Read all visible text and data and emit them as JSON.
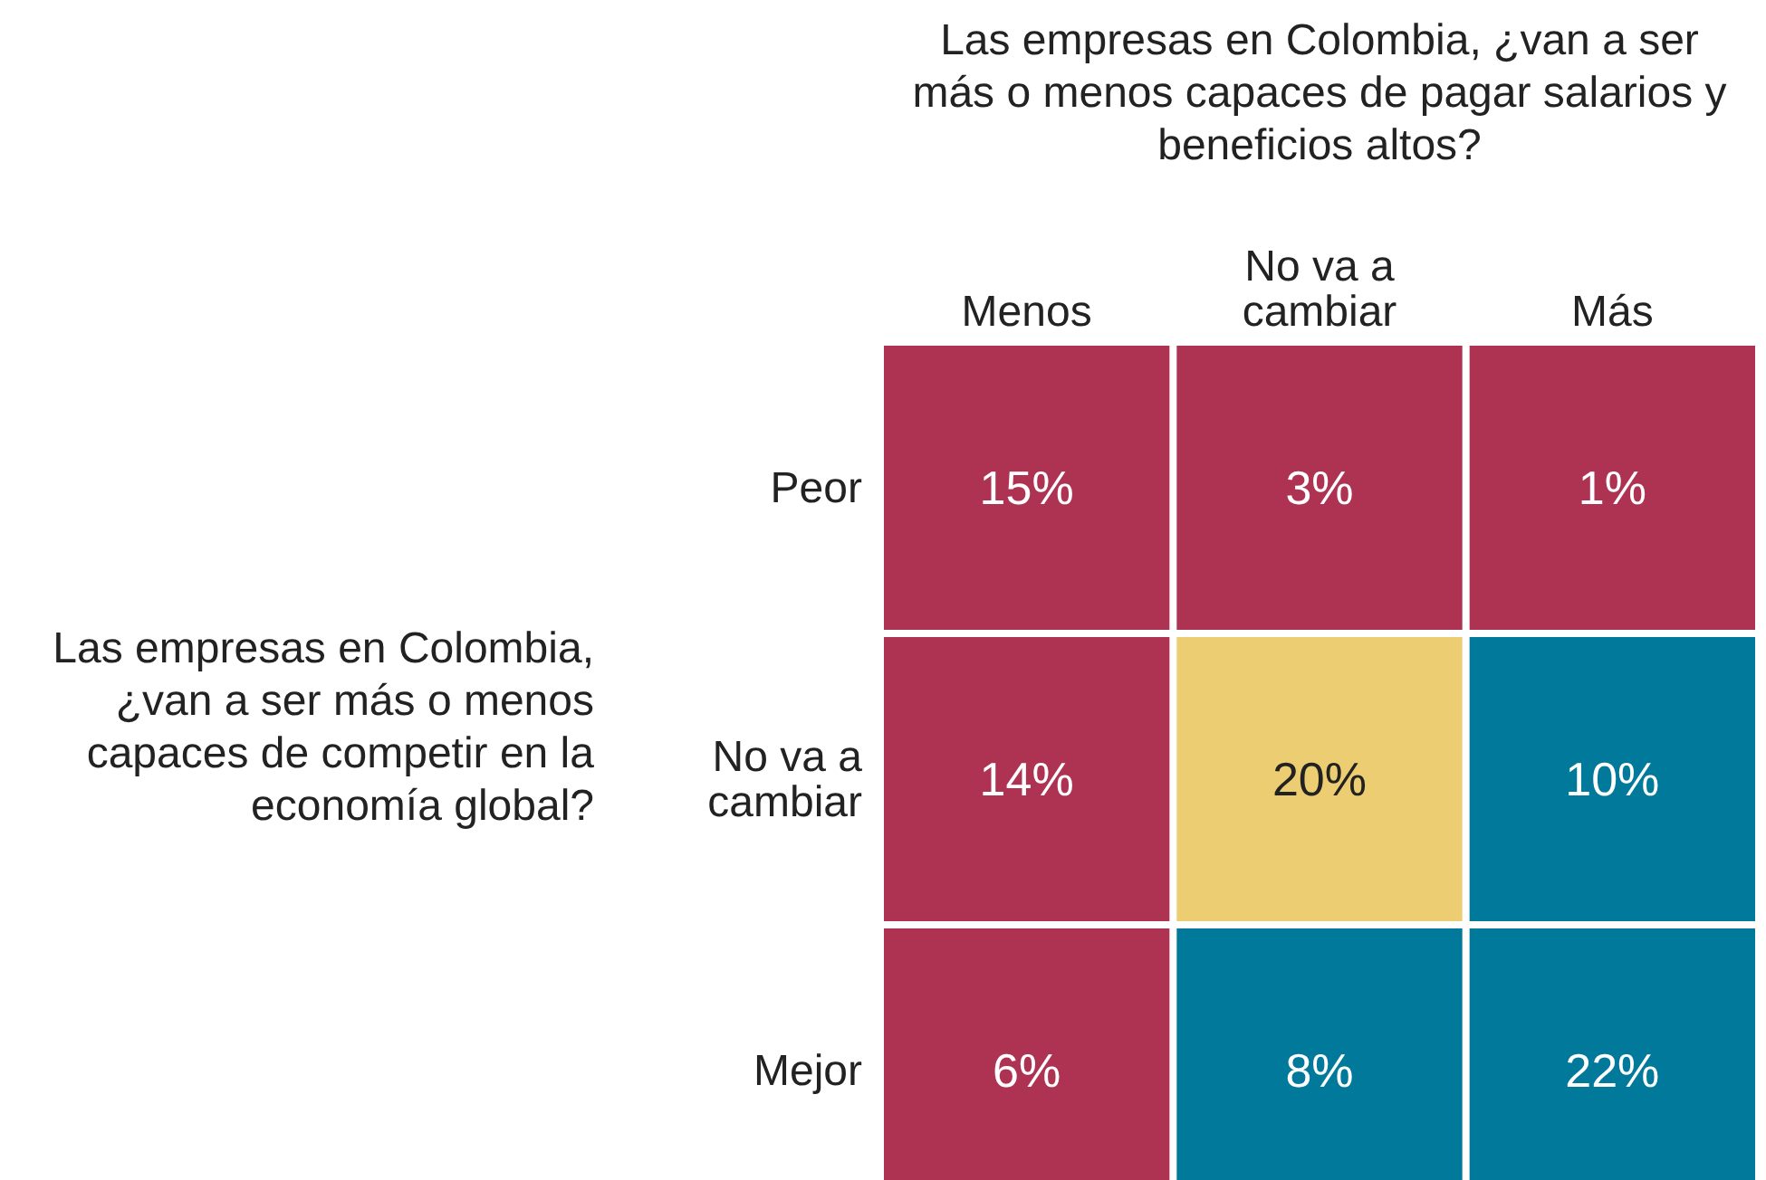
{
  "chart_data": {
    "type": "heatmap",
    "xlabel": "Las empresas en Colombia, ¿van a ser más o menos capaces de pagar salarios y beneficios altos?",
    "ylabel": "Las empresas en Colombia, ¿van a ser más o menos capaces de competir en la economía global?",
    "categories": [
      "Menos",
      "No va a cambiar",
      "Más"
    ],
    "y_categories": [
      "Peor",
      "No va a cambiar",
      "Mejor"
    ],
    "cells": [
      [
        15,
        3,
        1
      ],
      [
        14,
        20,
        10
      ],
      [
        6,
        8,
        22
      ]
    ],
    "cell_labels": [
      [
        "15%",
        "3%",
        "1%"
      ],
      [
        "14%",
        "20%",
        "10%"
      ],
      [
        "6%",
        "8%",
        "22%"
      ]
    ],
    "colors": [
      [
        "#ae3353",
        "#ae3353",
        "#ae3353"
      ],
      [
        "#ae3353",
        "#eccd72",
        "#00799a"
      ],
      [
        "#ae3353",
        "#00799a",
        "#00799a"
      ]
    ]
  }
}
